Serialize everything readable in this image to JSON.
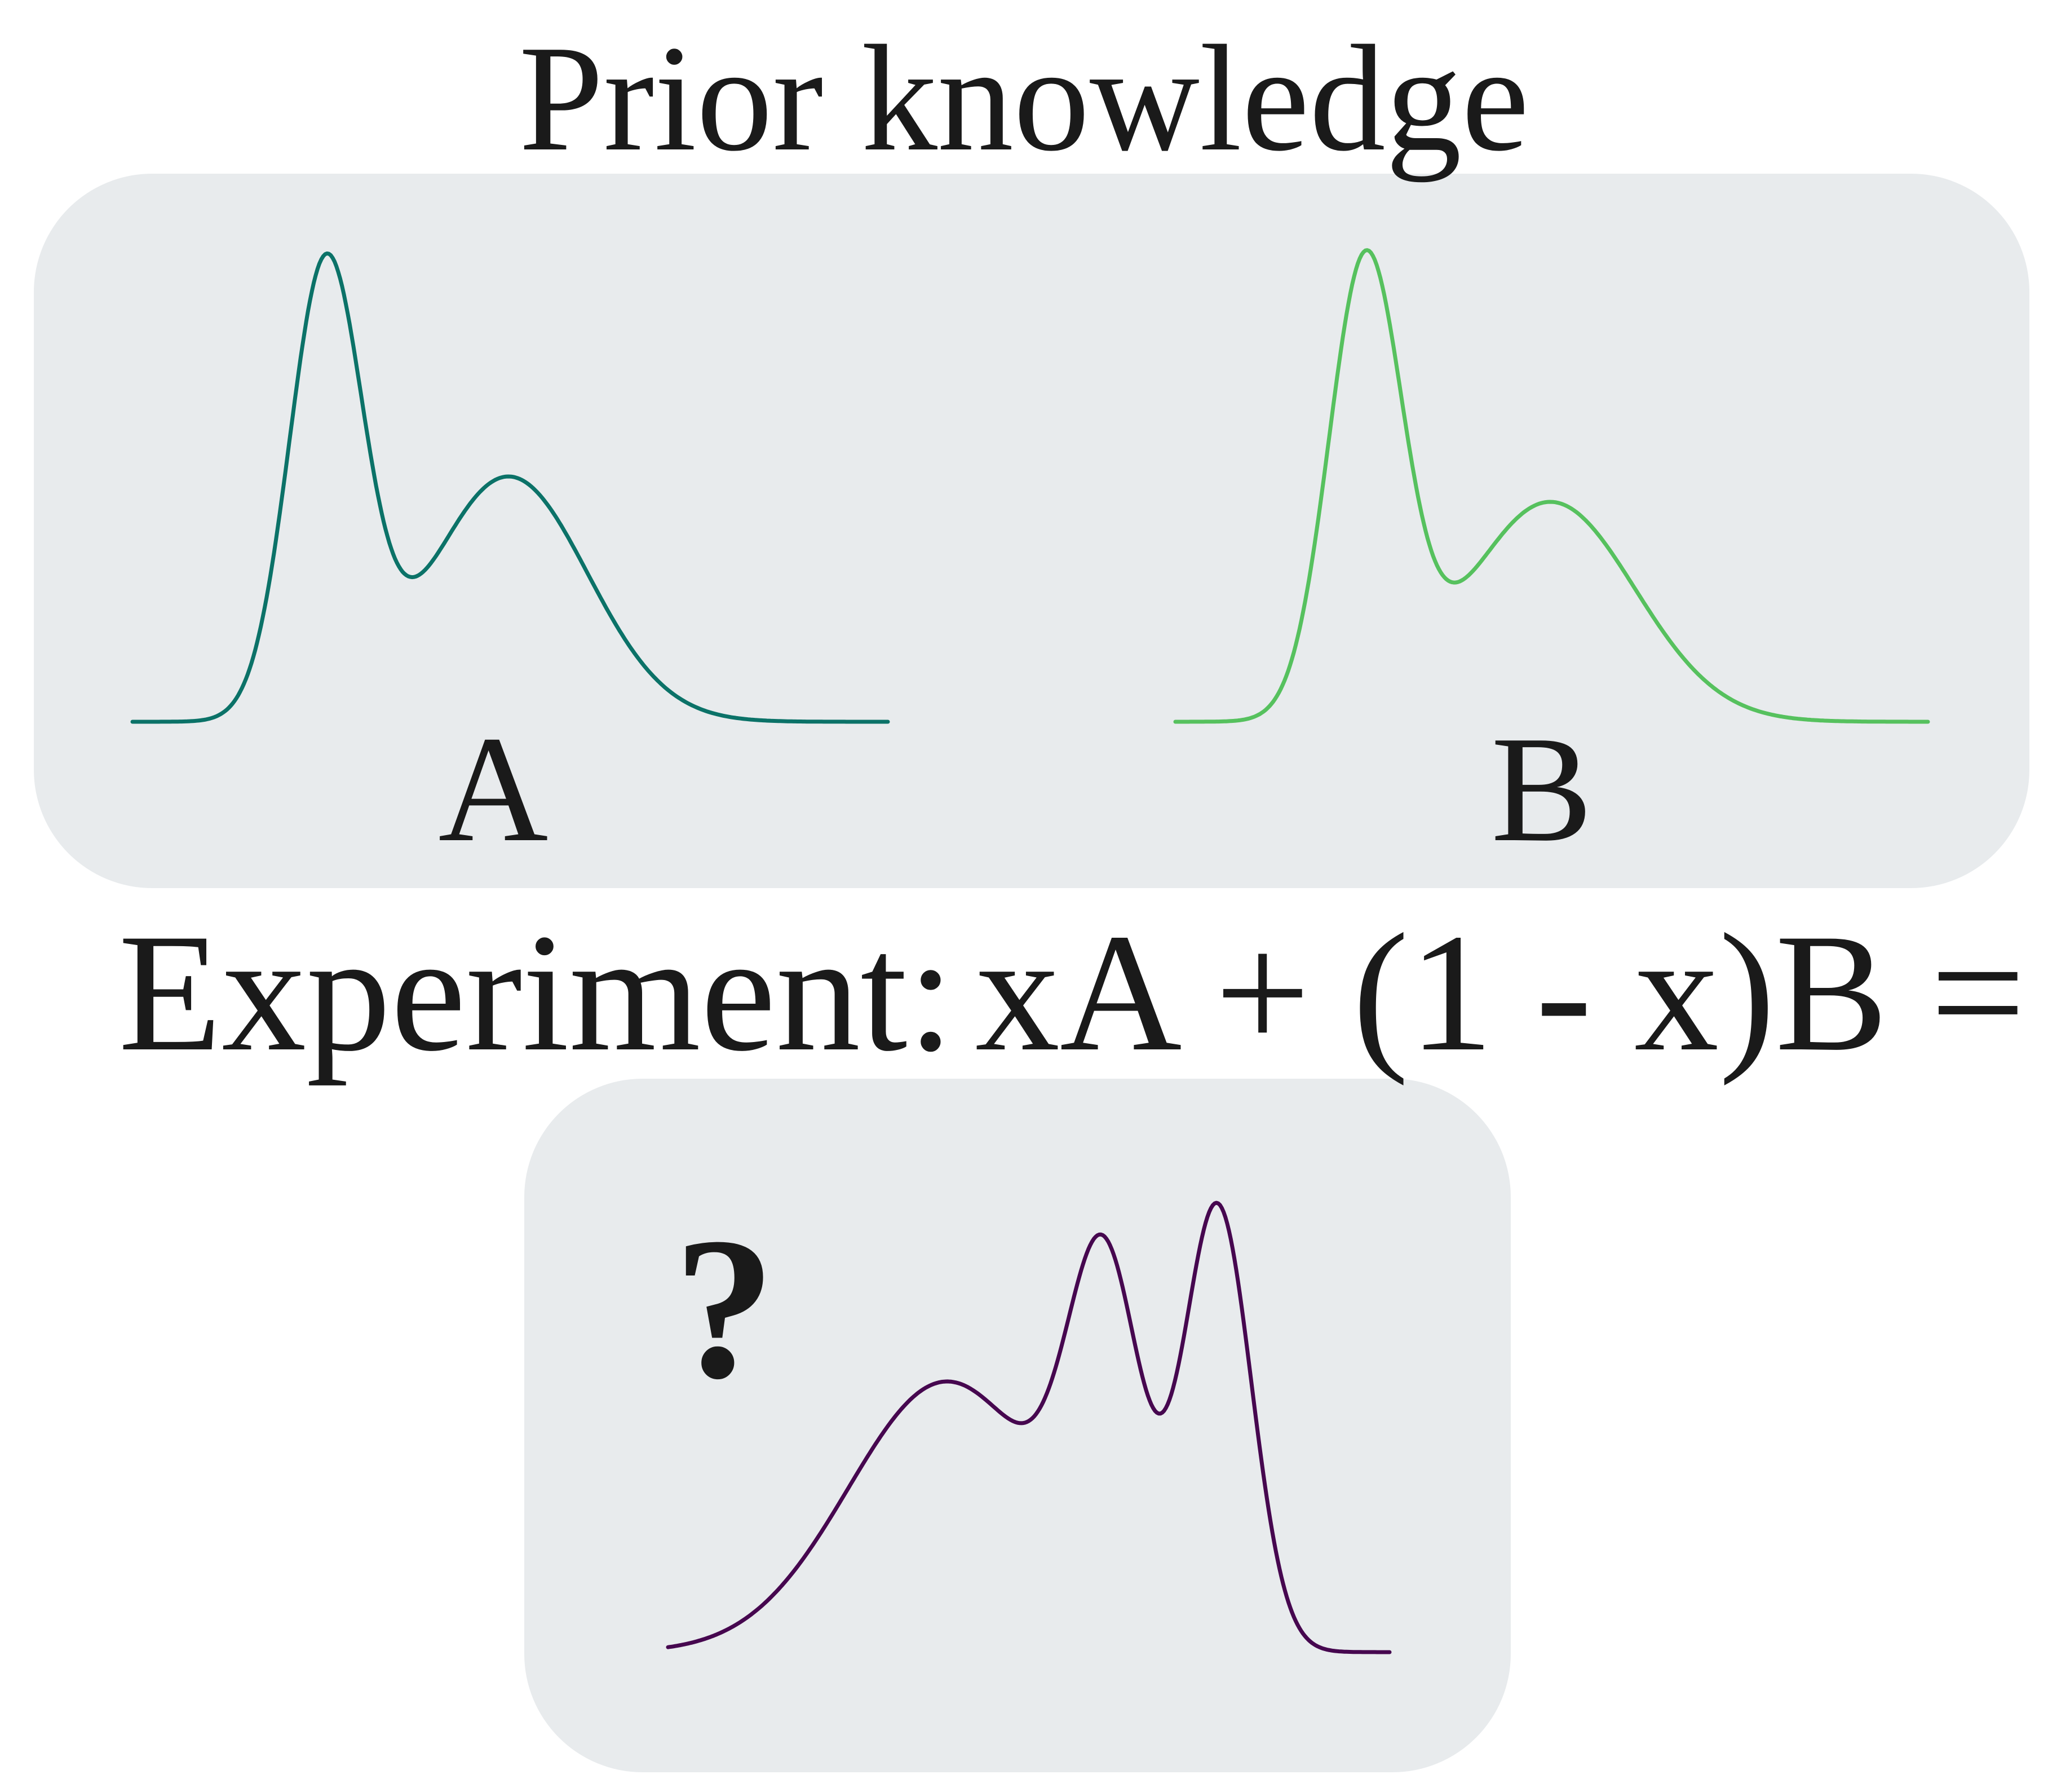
{
  "title": "Prior knowledge",
  "prior_panel": {
    "spectrum_a": {
      "label": "A",
      "color": "#0b7268"
    },
    "spectrum_b": {
      "label": "B",
      "color": "#56c15e"
    }
  },
  "experiment": {
    "label": "Experiment:",
    "equation": "xA + (1 - x)B ="
  },
  "result_panel": {
    "unknown_symbol": "?",
    "color": "#46074f"
  },
  "colors": {
    "panel_background": "#e8ebed",
    "text": "#1a1a1a"
  }
}
